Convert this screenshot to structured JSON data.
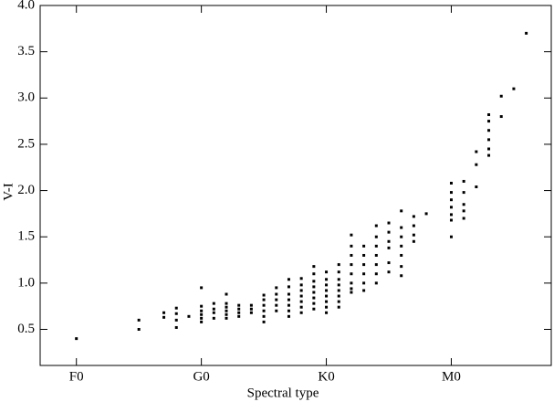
{
  "chart_data": {
    "type": "scatter",
    "xlabel": "Spectral type",
    "ylabel": "V-I",
    "xlim": [
      -2.9,
      38
    ],
    "ylim": [
      0.11,
      4.0
    ],
    "xticks": [
      {
        "value": 0,
        "label": "F0"
      },
      {
        "value": 10,
        "label": "G0"
      },
      {
        "value": 20,
        "label": "K0"
      },
      {
        "value": 30,
        "label": "M0"
      }
    ],
    "yticks": [
      {
        "value": 0.5,
        "label": "0.5"
      },
      {
        "value": 1.0,
        "label": "1.0"
      },
      {
        "value": 1.5,
        "label": "1.5"
      },
      {
        "value": 2.0,
        "label": "2.0"
      },
      {
        "value": 2.5,
        "label": "2.5"
      },
      {
        "value": 3.0,
        "label": "3.0"
      },
      {
        "value": 3.5,
        "label": "3.5"
      },
      {
        "value": 4.0,
        "label": "4.0"
      }
    ],
    "color": "#000000",
    "x": [
      0,
      5,
      5,
      7,
      7,
      8,
      8,
      8,
      8,
      9,
      10,
      10,
      10,
      10,
      10,
      10,
      11,
      11,
      11,
      11,
      12,
      12,
      12,
      12,
      12,
      12,
      13,
      13,
      13,
      13,
      14,
      14,
      14,
      15,
      15,
      15,
      15,
      15,
      15,
      16,
      16,
      16,
      16,
      16,
      17,
      17,
      17,
      17,
      17,
      17,
      17,
      18,
      18,
      18,
      18,
      18,
      18,
      18,
      19,
      19,
      19,
      19,
      19,
      19,
      19,
      19,
      20,
      20,
      20,
      20,
      20,
      20,
      20,
      20,
      21,
      21,
      21,
      21,
      21,
      21,
      21,
      21,
      22,
      22,
      22,
      22,
      22,
      22,
      22,
      22,
      23,
      23,
      23,
      23,
      23,
      23,
      24,
      24,
      24,
      24,
      24,
      24,
      24,
      25,
      25,
      25,
      25,
      25,
      25,
      26,
      26,
      26,
      26,
      26,
      26,
      26,
      27,
      27,
      27,
      27,
      28,
      30,
      30,
      30,
      30,
      30,
      30,
      30,
      31,
      31,
      31,
      31,
      31,
      32,
      32,
      32,
      33,
      33,
      33,
      33,
      33,
      33,
      34,
      34,
      35,
      36
    ],
    "values": [
      0.4,
      0.6,
      0.5,
      0.68,
      0.63,
      0.73,
      0.67,
      0.6,
      0.52,
      0.64,
      0.95,
      0.75,
      0.7,
      0.66,
      0.62,
      0.58,
      0.78,
      0.72,
      0.68,
      0.62,
      0.88,
      0.78,
      0.74,
      0.7,
      0.66,
      0.62,
      0.76,
      0.72,
      0.68,
      0.64,
      0.76,
      0.72,
      0.68,
      0.87,
      0.82,
      0.76,
      0.7,
      0.64,
      0.58,
      0.95,
      0.88,
      0.82,
      0.76,
      0.7,
      1.04,
      0.96,
      0.88,
      0.82,
      0.76,
      0.7,
      0.64,
      1.05,
      0.98,
      0.92,
      0.86,
      0.8,
      0.74,
      0.68,
      1.18,
      1.1,
      1.02,
      0.96,
      0.9,
      0.84,
      0.78,
      0.72,
      1.12,
      1.04,
      0.98,
      0.92,
      0.86,
      0.8,
      0.74,
      0.68,
      1.2,
      1.12,
      1.04,
      0.98,
      0.92,
      0.86,
      0.8,
      0.74,
      1.52,
      1.4,
      1.3,
      1.2,
      1.1,
      1.0,
      0.94,
      0.9,
      1.4,
      1.3,
      1.2,
      1.1,
      1.0,
      0.92,
      1.62,
      1.5,
      1.4,
      1.3,
      1.2,
      1.1,
      1.0,
      1.65,
      1.55,
      1.45,
      1.38,
      1.22,
      1.12,
      1.78,
      1.6,
      1.5,
      1.4,
      1.3,
      1.18,
      1.08,
      1.72,
      1.62,
      1.52,
      1.45,
      1.75,
      2.08,
      1.98,
      1.9,
      1.82,
      1.74,
      1.68,
      1.5,
      2.1,
      1.98,
      1.85,
      1.78,
      1.7,
      2.42,
      2.28,
      2.04,
      2.82,
      2.75,
      2.65,
      2.55,
      2.45,
      2.38,
      3.02,
      2.8,
      3.1,
      3.7
    ]
  }
}
